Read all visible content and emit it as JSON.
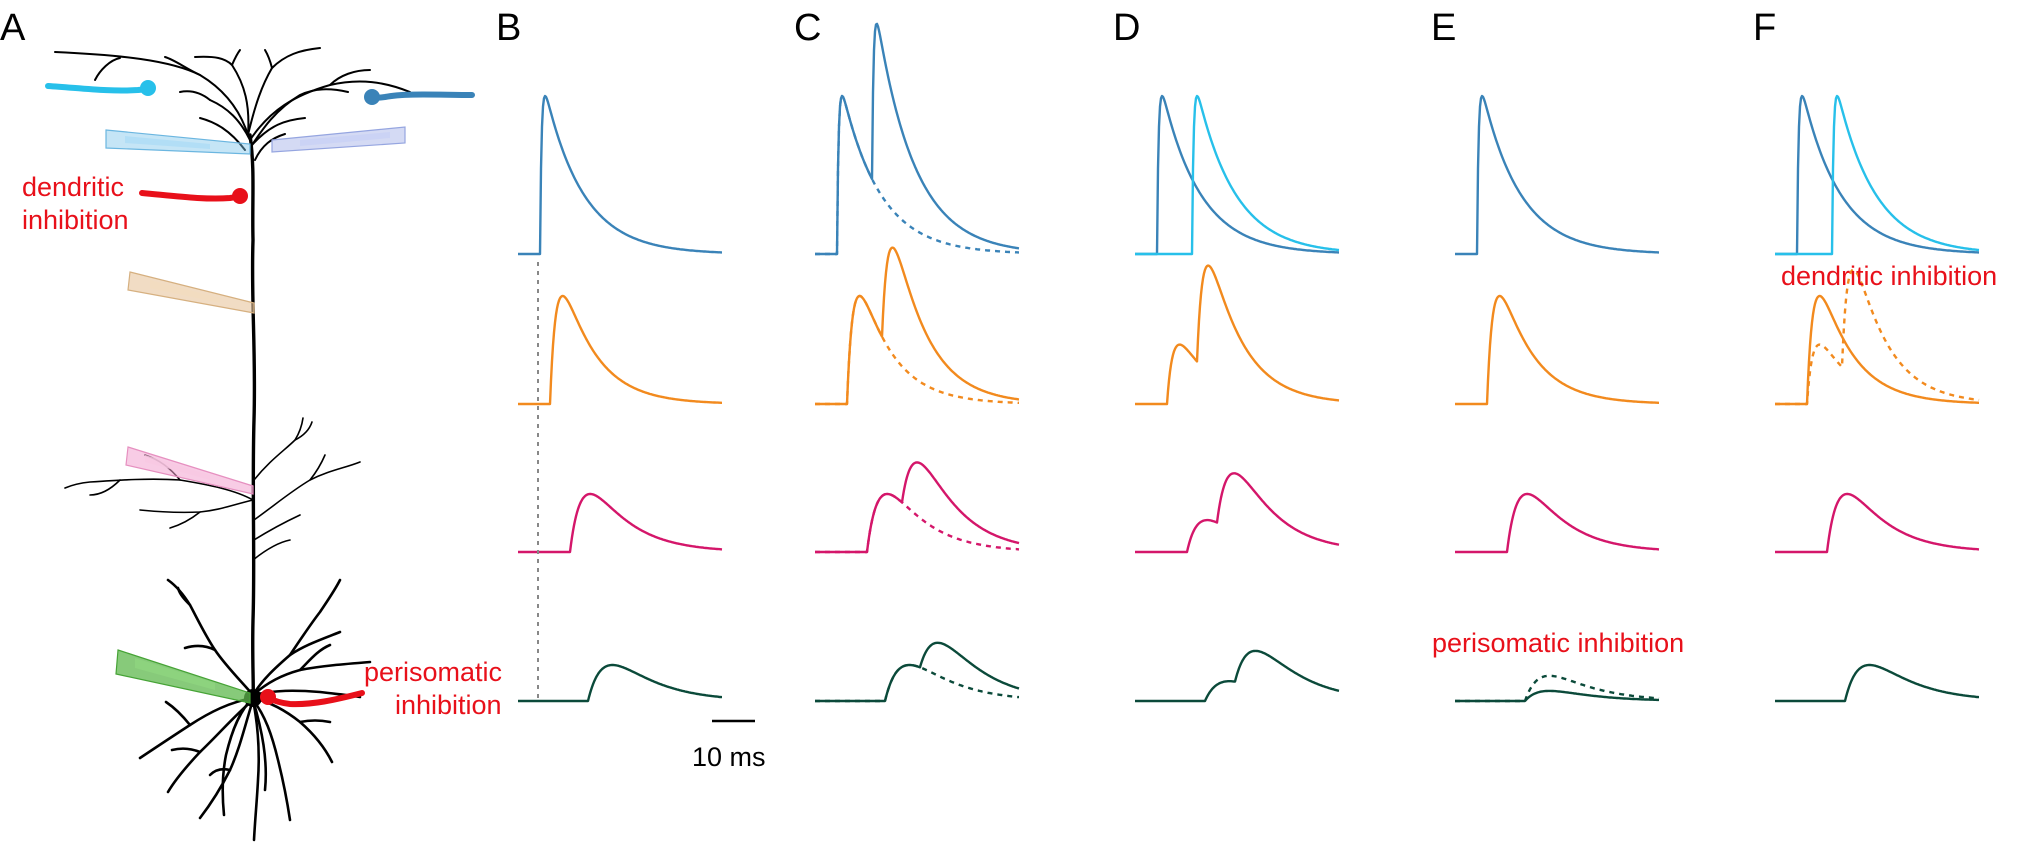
{
  "panels": {
    "A": "A",
    "B": "B",
    "C": "C",
    "D": "D",
    "E": "E",
    "F": "F"
  },
  "labels": {
    "dendritic_line1": "dendritic",
    "dendritic_line2": "inhibition",
    "perisomatic_line1": "perisomatic",
    "perisomatic_line2": "inhibition",
    "perisomatic_inhibition": "perisomatic inhibition",
    "dendritic_inhibition": "dendritic inhibition",
    "scale_bar": "10 ms"
  },
  "colors": {
    "apical_blue": "#3a83b8",
    "tuft_cyan": "#27c0ea",
    "orange": "#f28a1e",
    "magenta": "#d4166a",
    "dark_green": "#0b4a3a",
    "inhibition_red": "#e8101a",
    "electrode_blue": "#7fc6ec",
    "electrode_lavender": "#a9b6ea",
    "electrode_tan": "#e8c49c",
    "electrode_pink": "#f2a3cf",
    "electrode_green": "#5fb84d"
  },
  "electrodes": [
    {
      "site": "apical tuft, left",
      "color": "electrode_blue"
    },
    {
      "site": "apical tuft, right",
      "color": "electrode_lavender"
    },
    {
      "site": "apical trunk",
      "color": "electrode_tan"
    },
    {
      "site": "oblique dendrite",
      "color": "electrode_pink"
    },
    {
      "site": "soma",
      "color": "electrode_green"
    }
  ],
  "synapses": [
    {
      "site": "tuft left input",
      "color": "tuft_cyan"
    },
    {
      "site": "tuft right input",
      "color": "apical_blue"
    },
    {
      "site": "dendritic inhibition",
      "color": "inhibition_red"
    },
    {
      "site": "perisomatic inhibition",
      "color": "inhibition_red"
    }
  ]
}
